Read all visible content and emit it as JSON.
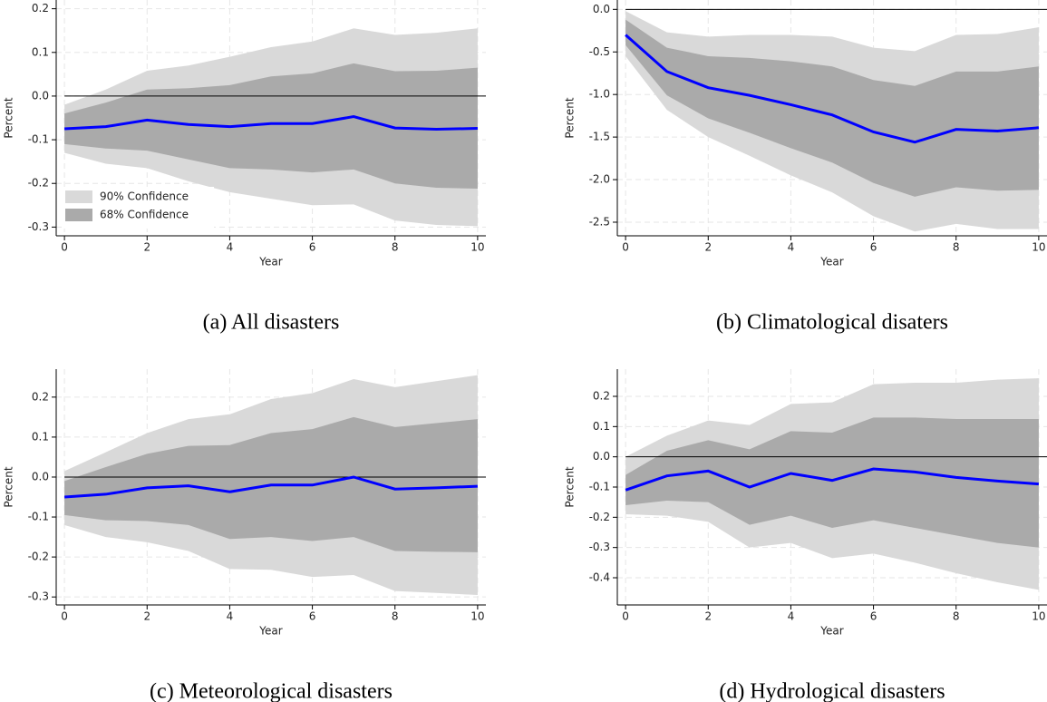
{
  "chart_data": [
    {
      "type": "line",
      "caption": "(a) All disasters",
      "xlabel": "Year",
      "ylabel": "Percent",
      "x": [
        0,
        1,
        2,
        3,
        4,
        5,
        6,
        7,
        8,
        9,
        10
      ],
      "xlim": [
        -0.2,
        10.2
      ],
      "xticks": [
        0,
        2,
        4,
        6,
        8,
        10
      ],
      "ylim": [
        -0.32,
        0.22
      ],
      "yticks": [
        0.2,
        0.1,
        {
          "value": 0,
          "label": "0.0"
        },
        -0.1,
        -0.2,
        -0.3
      ],
      "grid": true,
      "zero_line": true,
      "legend": "lower left",
      "bands": [
        {
          "name": "90% Confidence",
          "color": "#d9d9d9",
          "upper": [
            -0.02,
            0.015,
            0.058,
            0.07,
            0.09,
            0.112,
            0.125,
            0.155,
            0.14,
            0.145,
            0.155
          ],
          "lower": [
            -0.13,
            -0.155,
            -0.165,
            -0.195,
            -0.22,
            -0.235,
            -0.25,
            -0.248,
            -0.285,
            -0.295,
            -0.298
          ]
        },
        {
          "name": "68% Confidence",
          "color": "#aaaaaa",
          "upper": [
            -0.04,
            -0.015,
            0.015,
            0.018,
            0.025,
            0.045,
            0.052,
            0.075,
            0.057,
            0.058,
            0.065
          ],
          "lower": [
            -0.11,
            -0.12,
            -0.125,
            -0.145,
            -0.165,
            -0.168,
            -0.175,
            -0.168,
            -0.2,
            -0.21,
            -0.212
          ]
        }
      ],
      "color": "#0000ff",
      "values": [
        -0.075,
        -0.07,
        -0.055,
        -0.065,
        -0.07,
        -0.063,
        -0.063,
        -0.047,
        -0.073,
        -0.076,
        -0.074
      ]
    },
    {
      "type": "line",
      "caption": "(b) Climatological disaters",
      "xlabel": "Year",
      "ylabel": "Percent",
      "x": [
        0,
        1,
        2,
        3,
        4,
        5,
        6,
        7,
        8,
        9,
        10
      ],
      "xlim": [
        -0.2,
        10.2
      ],
      "xticks": [
        0,
        2,
        4,
        6,
        8,
        10
      ],
      "ylim": [
        -2.66,
        0.11
      ],
      "yticks": [
        {
          "value": 0,
          "label": "0.0"
        },
        -0.5,
        {
          "value": -1,
          "label": "-1.0"
        },
        -1.5,
        {
          "value": -2,
          "label": "-2.0"
        },
        -2.5
      ],
      "grid": true,
      "zero_line": true,
      "bands": [
        {
          "color": "#d9d9d9",
          "upper": [
            -0.02,
            -0.27,
            -0.32,
            -0.3,
            -0.3,
            -0.32,
            -0.45,
            -0.49,
            -0.3,
            -0.29,
            -0.21
          ],
          "lower": [
            -0.55,
            -1.18,
            -1.5,
            -1.72,
            -1.95,
            -2.15,
            -2.43,
            -2.61,
            -2.52,
            -2.58,
            -2.58
          ]
        },
        {
          "color": "#aaaaaa",
          "upper": [
            -0.12,
            -0.45,
            -0.55,
            -0.57,
            -0.61,
            -0.67,
            -0.83,
            -0.9,
            -0.73,
            -0.73,
            -0.67
          ],
          "lower": [
            -0.42,
            -1.01,
            -1.28,
            -1.45,
            -1.63,
            -1.8,
            -2.04,
            -2.2,
            -2.09,
            -2.13,
            -2.12
          ]
        }
      ],
      "color": "#0000ff",
      "values": [
        -0.3,
        -0.73,
        -0.92,
        -1.01,
        -1.12,
        -1.24,
        -1.44,
        -1.56,
        -1.41,
        -1.43,
        -1.39
      ]
    },
    {
      "type": "line",
      "caption": "(c) Meteorological disasters",
      "xlabel": "Year",
      "ylabel": "Percent",
      "x": [
        0,
        1,
        2,
        3,
        4,
        5,
        6,
        7,
        8,
        9,
        10
      ],
      "xlim": [
        -0.2,
        10.2
      ],
      "xticks": [
        0,
        2,
        4,
        6,
        8,
        10
      ],
      "ylim": [
        -0.32,
        0.27
      ],
      "yticks": [
        0.2,
        0.1,
        {
          "value": 0,
          "label": "0.0"
        },
        -0.1,
        -0.2,
        -0.3
      ],
      "grid": true,
      "zero_line": true,
      "bands": [
        {
          "color": "#d9d9d9",
          "upper": [
            0.015,
            0.062,
            0.11,
            0.145,
            0.157,
            0.195,
            0.21,
            0.245,
            0.225,
            0.24,
            0.255
          ],
          "lower": [
            -0.12,
            -0.15,
            -0.163,
            -0.185,
            -0.23,
            -0.232,
            -0.25,
            -0.245,
            -0.285,
            -0.29,
            -0.295
          ]
        },
        {
          "color": "#aaaaaa",
          "upper": [
            -0.01,
            0.025,
            0.058,
            0.078,
            0.08,
            0.11,
            0.12,
            0.15,
            0.125,
            0.135,
            0.145
          ],
          "lower": [
            -0.095,
            -0.108,
            -0.11,
            -0.12,
            -0.155,
            -0.15,
            -0.16,
            -0.15,
            -0.185,
            -0.187,
            -0.188
          ]
        }
      ],
      "color": "#0000ff",
      "values": [
        -0.05,
        -0.043,
        -0.027,
        -0.022,
        -0.037,
        -0.02,
        -0.02,
        0.0,
        -0.03,
        -0.027,
        -0.023
      ]
    },
    {
      "type": "line",
      "caption": "(d) Hydrological disasters",
      "xlabel": "Year",
      "ylabel": "Percent",
      "x": [
        0,
        1,
        2,
        3,
        4,
        5,
        6,
        7,
        8,
        9,
        10
      ],
      "xlim": [
        -0.2,
        10.2
      ],
      "xticks": [
        0,
        2,
        4,
        6,
        8,
        10
      ],
      "ylim": [
        -0.49,
        0.29
      ],
      "yticks": [
        0.2,
        0.1,
        {
          "value": 0,
          "label": "0.0"
        },
        -0.1,
        -0.2,
        -0.3,
        -0.4
      ],
      "grid": true,
      "zero_line": true,
      "bands": [
        {
          "color": "#d9d9d9",
          "upper": [
            0.0,
            0.07,
            0.12,
            0.105,
            0.175,
            0.18,
            0.24,
            0.245,
            0.245,
            0.255,
            0.26
          ],
          "lower": [
            -0.19,
            -0.195,
            -0.215,
            -0.3,
            -0.285,
            -0.335,
            -0.32,
            -0.35,
            -0.385,
            -0.415,
            -0.44
          ]
        },
        {
          "color": "#aaaaaa",
          "upper": [
            -0.06,
            0.02,
            0.055,
            0.025,
            0.085,
            0.08,
            0.13,
            0.13,
            0.125,
            0.125,
            0.125
          ],
          "lower": [
            -0.16,
            -0.145,
            -0.15,
            -0.225,
            -0.195,
            -0.235,
            -0.21,
            -0.235,
            -0.26,
            -0.285,
            -0.3
          ]
        }
      ],
      "color": "#0000ff",
      "values": [
        -0.11,
        -0.063,
        -0.047,
        -0.1,
        -0.055,
        -0.078,
        -0.04,
        -0.05,
        -0.068,
        -0.08,
        -0.09
      ]
    }
  ]
}
